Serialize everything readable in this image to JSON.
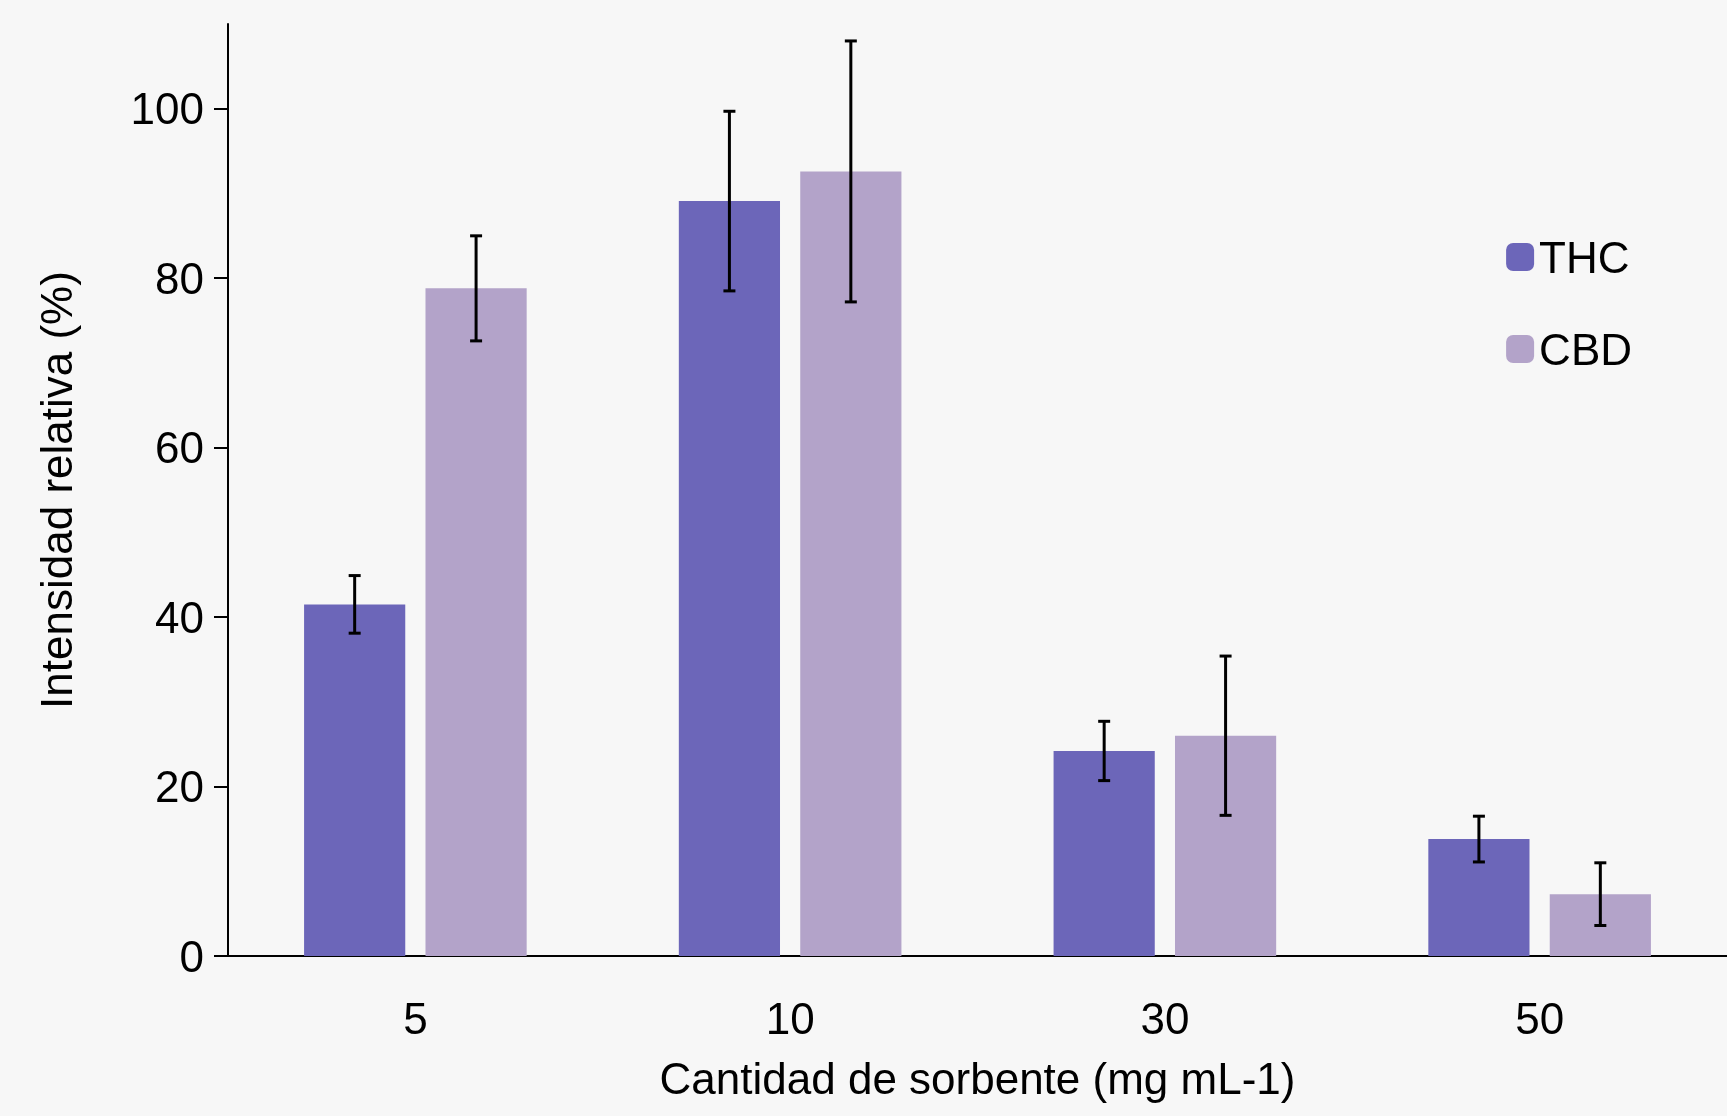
{
  "chart_data": {
    "type": "bar",
    "xlabel": "Cantidad de sorbente (mg mL-1)",
    "ylabel": "Intensidad relativa (%)",
    "categories": [
      "5",
      "10",
      "30",
      "50"
    ],
    "series": [
      {
        "name": "THC",
        "color": "#6c66b9",
        "values": [
          41.5,
          89.1,
          24.2,
          13.8
        ],
        "errors": [
          3.4,
          10.6,
          3.5,
          2.7
        ]
      },
      {
        "name": "CBD",
        "color": "#b3a3c9",
        "values": [
          78.8,
          92.6,
          26.0,
          7.3
        ],
        "errors": [
          6.2,
          15.4,
          9.4,
          3.7
        ]
      }
    ],
    "ylim": [
      0,
      110
    ],
    "yticks": [
      0,
      20,
      40,
      60,
      80,
      100
    ],
    "grid": false,
    "legend": "right"
  }
}
